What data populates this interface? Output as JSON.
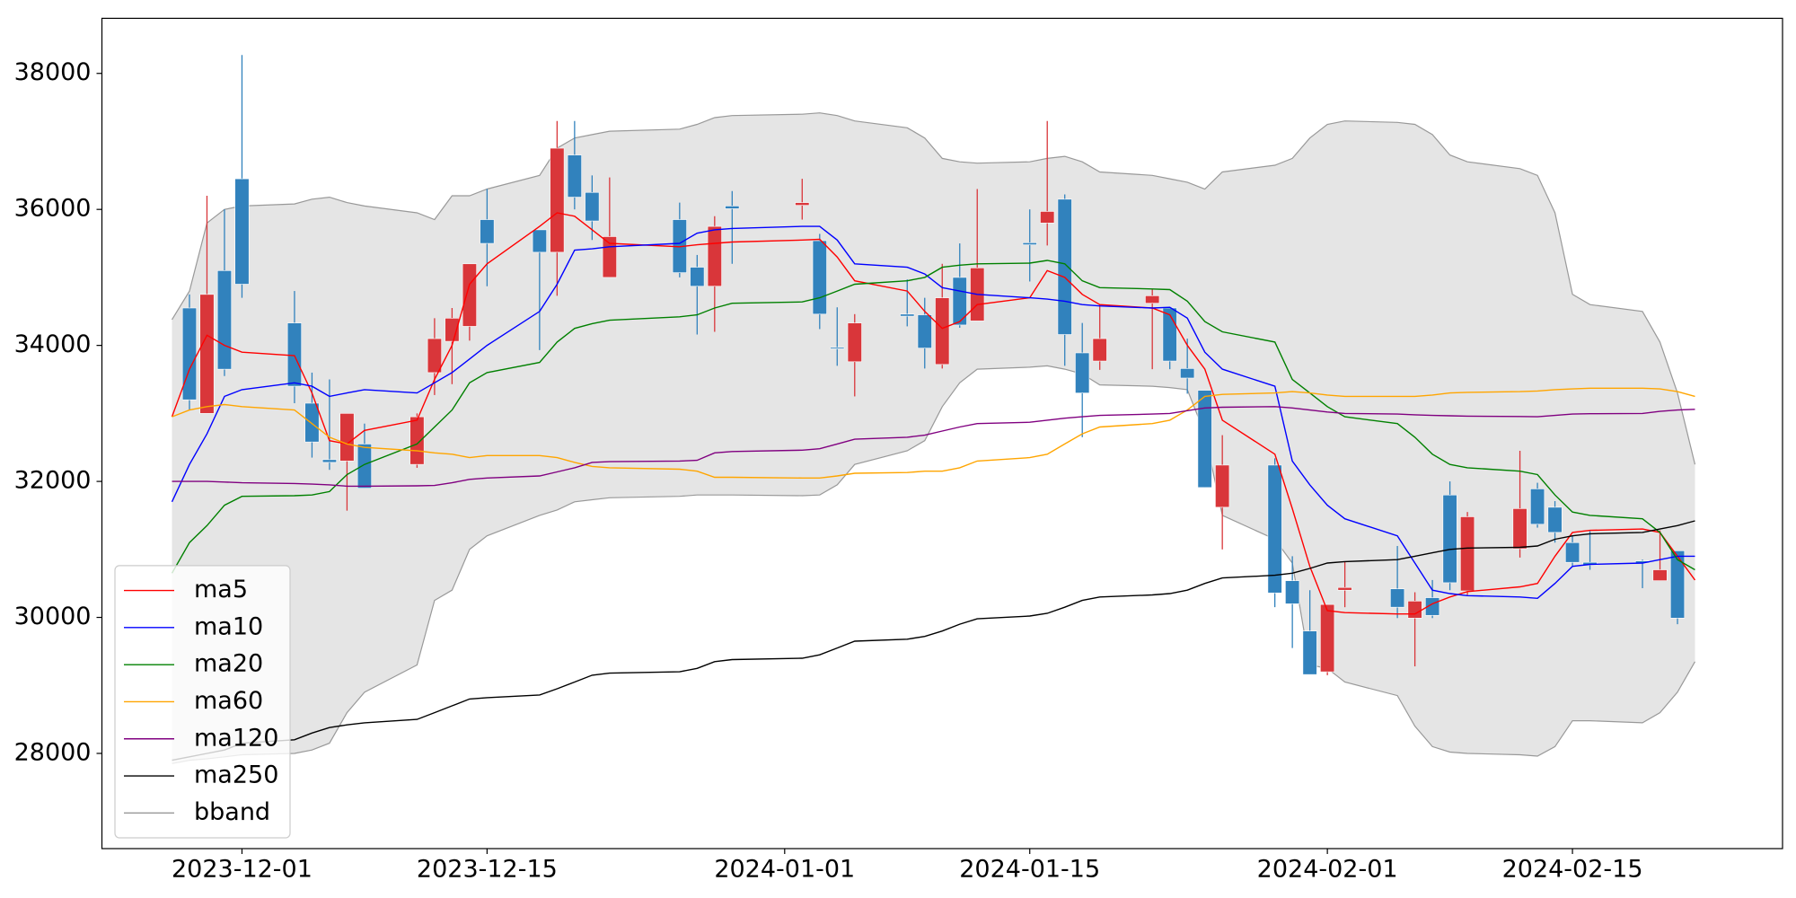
{
  "chart_data": {
    "type": "candlestick",
    "x": [
      "2023-11-27",
      "2023-11-28",
      "2023-11-29",
      "2023-11-30",
      "2023-12-01",
      "2023-12-04",
      "2023-12-05",
      "2023-12-06",
      "2023-12-07",
      "2023-12-08",
      "2023-12-11",
      "2023-12-12",
      "2023-12-13",
      "2023-12-14",
      "2023-12-15",
      "2023-12-18",
      "2023-12-19",
      "2023-12-20",
      "2023-12-21",
      "2023-12-22",
      "2023-12-26",
      "2023-12-27",
      "2023-12-28",
      "2023-12-29",
      "2024-01-02",
      "2024-01-03",
      "2024-01-04",
      "2024-01-05",
      "2024-01-08",
      "2024-01-09",
      "2024-01-10",
      "2024-01-11",
      "2024-01-12",
      "2024-01-15",
      "2024-01-16",
      "2024-01-17",
      "2024-01-18",
      "2024-01-19",
      "2024-01-22",
      "2024-01-23",
      "2024-01-24",
      "2024-01-25",
      "2024-01-26",
      "2024-01-29",
      "2024-01-30",
      "2024-01-31",
      "2024-02-01",
      "2024-02-02",
      "2024-02-05",
      "2024-02-06",
      "2024-02-07",
      "2024-02-08",
      "2024-02-09",
      "2024-02-12",
      "2024-02-13",
      "2024-02-14",
      "2024-02-15",
      "2024-02-16",
      "2024-02-19",
      "2024-02-20",
      "2024-02-21",
      "2024-02-22"
    ],
    "open": [
      null,
      34550,
      33000,
      35100,
      36450,
      34330,
      33150,
      32320,
      32300,
      32550,
      32250,
      33600,
      34060,
      34280,
      35850,
      35700,
      35370,
      36800,
      36250,
      35000,
      35850,
      35150,
      34870,
      36050,
      36060,
      35540,
      33970,
      33760,
      34460,
      34450,
      33720,
      35000,
      34360,
      35510,
      35800,
      36150,
      33890,
      33770,
      34620,
      34550,
      33660,
      33340,
      31620,
      32240,
      30540,
      29800,
      29200,
      30400,
      30420,
      29990,
      30290,
      31800,
      30390,
      31010,
      31890,
      31620,
      31100,
      30810,
      30830,
      30540,
      30980,
      null
    ],
    "high": [
      null,
      34750,
      36200,
      36000,
      38270,
      34800,
      33600,
      33500,
      33000,
      32850,
      33000,
      34400,
      34550,
      35200,
      36300,
      35700,
      37300,
      37300,
      36500,
      36470,
      36100,
      35330,
      35900,
      36270,
      36450,
      35640,
      34560,
      34460,
      34970,
      34700,
      35200,
      35500,
      36300,
      36000,
      37300,
      36220,
      34330,
      34600,
      34830,
      34550,
      34100,
      33340,
      32680,
      32340,
      30900,
      30400,
      30190,
      30820,
      31050,
      30370,
      30550,
      32000,
      31550,
      32450,
      31980,
      31710,
      31200,
      31270,
      30850,
      31280,
      30980,
      null
    ],
    "low": [
      null,
      33050,
      33000,
      33550,
      34700,
      33150,
      32350,
      32170,
      31570,
      31900,
      32200,
      33270,
      33430,
      34070,
      34870,
      33930,
      34730,
      36000,
      35550,
      35000,
      35000,
      34160,
      34200,
      35200,
      35850,
      34240,
      33700,
      33250,
      34280,
      33660,
      33660,
      34260,
      34360,
      34940,
      35470,
      33700,
      32650,
      33640,
      33650,
      33650,
      33290,
      31910,
      31000,
      30150,
      29550,
      29160,
      29150,
      30150,
      29990,
      29280,
      29990,
      30400,
      30330,
      30880,
      31320,
      31100,
      30760,
      30700,
      30430,
      30540,
      29900,
      null
    ],
    "close": [
      null,
      33200,
      34750,
      33650,
      34900,
      33400,
      32580,
      32280,
      33000,
      31900,
      32950,
      34100,
      34400,
      35200,
      35500,
      35370,
      36900,
      36180,
      35830,
      35600,
      35070,
      34870,
      35750,
      36010,
      36100,
      34460,
      33950,
      34330,
      34430,
      33960,
      34700,
      34300,
      35140,
      35480,
      35970,
      34160,
      33300,
      34100,
      34730,
      33770,
      33520,
      31910,
      32240,
      30360,
      30200,
      29160,
      30190,
      30440,
      30150,
      30240,
      30030,
      30510,
      31480,
      31600,
      31370,
      31250,
      30810,
      30770,
      30800,
      30700,
      29990,
      null
    ],
    "up_color": "#d9363a",
    "down_color": "#3182bd",
    "series": [
      {
        "name": "ma5",
        "color": "#ff0000",
        "values": [
          32950,
          33650,
          34150,
          34000,
          33900,
          33850,
          33300,
          32600,
          32550,
          32750,
          32900,
          33500,
          34000,
          34900,
          35200,
          35750,
          35950,
          35900,
          35700,
          35500,
          35450,
          35480,
          35500,
          35520,
          35550,
          35560,
          35300,
          34950,
          34800,
          34500,
          34250,
          34350,
          34600,
          34700,
          35100,
          35000,
          34750,
          34600,
          34550,
          34450,
          34000,
          33650,
          32900,
          32400,
          31600,
          30750,
          30100,
          30070,
          30050,
          30050,
          30200,
          30300,
          30380,
          30450,
          30500,
          30900,
          31250,
          31280,
          31300,
          31250,
          30900,
          30550
        ]
      },
      {
        "name": "ma10",
        "color": "#0000ff",
        "values": [
          31700,
          32250,
          32700,
          33250,
          33350,
          33450,
          33400,
          33250,
          33300,
          33350,
          33300,
          33450,
          33600,
          33800,
          34000,
          34500,
          34900,
          35400,
          35420,
          35450,
          35500,
          35650,
          35700,
          35720,
          35750,
          35750,
          35550,
          35200,
          35150,
          35050,
          34850,
          34800,
          34750,
          34700,
          34680,
          34650,
          34600,
          34580,
          34550,
          34560,
          34400,
          33900,
          33650,
          33400,
          32300,
          31950,
          31650,
          31450,
          31200,
          30800,
          30400,
          30350,
          30320,
          30300,
          30280,
          30500,
          30750,
          30780,
          30800,
          30850,
          30900,
          30900
        ]
      },
      {
        "name": "ma20",
        "color": "#008000",
        "values": [
          30650,
          31100,
          31350,
          31650,
          31780,
          31790,
          31800,
          31850,
          32100,
          32250,
          32550,
          32800,
          33050,
          33450,
          33600,
          33750,
          34050,
          34250,
          34320,
          34370,
          34420,
          34450,
          34550,
          34620,
          34640,
          34700,
          34800,
          34900,
          34950,
          35000,
          35150,
          35180,
          35200,
          35210,
          35250,
          35200,
          34950,
          34850,
          34830,
          34820,
          34650,
          34350,
          34200,
          34050,
          33500,
          33300,
          33100,
          32950,
          32850,
          32650,
          32400,
          32250,
          32200,
          32150,
          32100,
          31800,
          31550,
          31500,
          31450,
          31250,
          30850,
          30700
        ]
      },
      {
        "name": "ma60",
        "color": "#ffa500",
        "values": [
          32950,
          33050,
          33100,
          33130,
          33100,
          33050,
          32850,
          32650,
          32550,
          32500,
          32450,
          32420,
          32400,
          32350,
          32380,
          32380,
          32350,
          32280,
          32220,
          32200,
          32180,
          32150,
          32060,
          32060,
          32050,
          32050,
          32080,
          32120,
          32130,
          32150,
          32150,
          32200,
          32300,
          32350,
          32400,
          32550,
          32700,
          32800,
          32850,
          32900,
          33050,
          33250,
          33280,
          33300,
          33320,
          33300,
          33270,
          33250,
          33250,
          33250,
          33270,
          33300,
          33310,
          33320,
          33330,
          33350,
          33360,
          33370,
          33370,
          33360,
          33320,
          33250
        ]
      },
      {
        "name": "ma120",
        "color": "#800080",
        "values": [
          32000,
          32000,
          32000,
          31990,
          31980,
          31970,
          31960,
          31950,
          31930,
          31930,
          31935,
          31940,
          31980,
          32030,
          32050,
          32080,
          32140,
          32200,
          32280,
          32290,
          32300,
          32310,
          32420,
          32440,
          32460,
          32480,
          32550,
          32620,
          32650,
          32680,
          32740,
          32800,
          32850,
          32870,
          32900,
          32930,
          32950,
          32970,
          32990,
          33000,
          33040,
          33080,
          33090,
          33100,
          33080,
          33050,
          33020,
          33000,
          32990,
          32980,
          32970,
          32965,
          32960,
          32955,
          32950,
          32970,
          32990,
          32995,
          33000,
          33030,
          33050,
          33060
        ]
      },
      {
        "name": "ma250",
        "color": "#000000",
        "values": [
          27900,
          27950,
          28000,
          28050,
          28150,
          28200,
          28300,
          28380,
          28420,
          28450,
          28500,
          28600,
          28700,
          28800,
          28820,
          28860,
          28950,
          29050,
          29150,
          29180,
          29200,
          29250,
          29350,
          29380,
          29400,
          29450,
          29550,
          29650,
          29680,
          29720,
          29800,
          29900,
          29980,
          30020,
          30060,
          30150,
          30250,
          30300,
          30330,
          30350,
          30400,
          30500,
          30580,
          30620,
          30650,
          30720,
          30800,
          30820,
          30850,
          30900,
          30950,
          31000,
          31020,
          31030,
          31050,
          31150,
          31200,
          31230,
          31250,
          31300,
          31350,
          31420
        ]
      },
      {
        "name": "bband",
        "color": "#999999",
        "fill": "#e5e5e5",
        "upper": [
          34380,
          34800,
          35800,
          36000,
          36050,
          36080,
          36150,
          36180,
          36100,
          36050,
          35950,
          35850,
          36200,
          36200,
          36300,
          36500,
          36900,
          37050,
          37100,
          37150,
          37180,
          37250,
          37350,
          37380,
          37400,
          37420,
          37380,
          37300,
          37200,
          37050,
          36750,
          36700,
          36680,
          36700,
          36750,
          36780,
          36700,
          36550,
          36500,
          36450,
          36400,
          36300,
          36550,
          36650,
          36750,
          37050,
          37250,
          37300,
          37280,
          37250,
          37100,
          36800,
          36700,
          36600,
          36500,
          35950,
          34750,
          34600,
          34500,
          34050,
          33300,
          32250
        ],
        "lower": [
          27850,
          27900,
          27920,
          27950,
          27980,
          28000,
          28050,
          28150,
          28600,
          28900,
          29300,
          30250,
          30400,
          31000,
          31200,
          31500,
          31580,
          31700,
          31730,
          31760,
          31780,
          31800,
          31800,
          31800,
          31790,
          31800,
          31950,
          32250,
          32450,
          32600,
          33100,
          33450,
          33650,
          33680,
          33700,
          33650,
          33580,
          33420,
          33400,
          33380,
          33350,
          32700,
          31500,
          31150,
          30800,
          29300,
          29250,
          29050,
          28850,
          28400,
          28100,
          28020,
          28000,
          27980,
          27960,
          28100,
          28480,
          28480,
          28450,
          28600,
          28900,
          29350
        ]
      }
    ],
    "xlim": [
      "2023-11-23",
      "2024-02-27"
    ],
    "xticks": [
      "2023-12-01",
      "2023-12-15",
      "2024-01-01",
      "2024-01-15",
      "2024-02-01",
      "2024-02-15"
    ],
    "ylim": [
      26600,
      38810
    ],
    "yticks": [
      28000,
      30000,
      32000,
      34000,
      36000,
      38000
    ],
    "legend": "lower left"
  }
}
